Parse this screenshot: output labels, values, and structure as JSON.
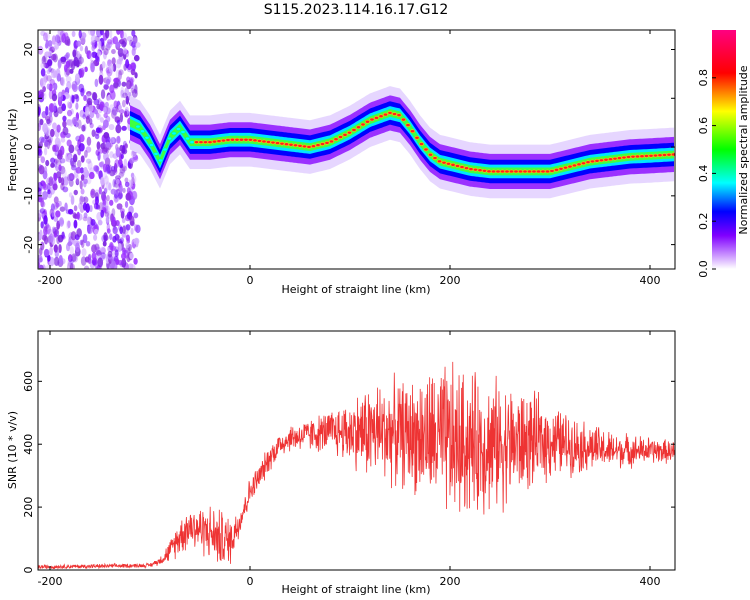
{
  "title": "S115.2023.114.16.17.G12",
  "chart_data": [
    {
      "type": "heatmap",
      "xlabel": "Height of straight line (km)",
      "ylabel": "Frequency (Hz)",
      "xlim": [
        -212,
        425
      ],
      "ylim": [
        -25,
        24
      ],
      "xticks": [
        -200,
        0,
        200,
        400
      ],
      "yticks": [
        20,
        10,
        0,
        -10,
        -20
      ],
      "ytick_labels": [
        "20",
        "10",
        "0",
        "-10",
        "-20"
      ],
      "colorbar": {
        "label": "Normalized spectral amplitude",
        "range": [
          0,
          1
        ],
        "ticks": [
          0.0,
          0.2,
          0.4,
          0.6,
          0.8
        ],
        "tick_labels": [
          "0.0",
          "0.2",
          "0.4",
          "0.6",
          "0.8"
        ],
        "colors": [
          "#ffffff",
          "#8000ff",
          "#0000ff",
          "#00ffff",
          "#00ff00",
          "#ffff00",
          "#ff0000",
          "#ff0080"
        ]
      },
      "noise_region_x": [
        -212,
        -112
      ],
      "ridge": {
        "x": [
          -120,
          -110,
          -100,
          -90,
          -80,
          -70,
          -60,
          -50,
          -40,
          -20,
          0,
          20,
          40,
          60,
          80,
          100,
          120,
          140,
          150,
          160,
          170,
          180,
          190,
          200,
          220,
          240,
          260,
          280,
          300,
          320,
          340,
          360,
          380,
          400,
          425
        ],
        "y": [
          5,
          4,
          1,
          -3,
          2,
          4,
          1,
          1,
          1,
          1.5,
          1.5,
          1,
          0.5,
          0,
          1,
          3,
          5.5,
          7,
          6.5,
          4,
          1,
          -1.5,
          -3,
          -3.5,
          -4.5,
          -5,
          -5,
          -5,
          -5,
          -4,
          -3,
          -2.5,
          -2,
          -1.8,
          -1.5
        ]
      }
    },
    {
      "type": "line",
      "xlabel": "Height of straight line (km)",
      "ylabel": "SNR (10 * v/v)",
      "xlim": [
        -212,
        425
      ],
      "ylim": [
        0,
        760
      ],
      "xticks": [
        -200,
        0,
        200,
        400
      ],
      "yticks": [
        0,
        200,
        400,
        600
      ],
      "color": "#ee3333",
      "envelope": {
        "x": [
          -212,
          -150,
          -100,
          -90,
          -80,
          -70,
          -60,
          -50,
          -40,
          -30,
          -20,
          -10,
          0,
          10,
          20,
          30,
          40,
          60,
          80,
          100,
          120,
          140,
          160,
          180,
          200,
          220,
          240,
          260,
          280,
          300,
          320,
          340,
          360,
          380,
          400,
          425
        ],
        "mean": [
          10,
          12,
          15,
          30,
          60,
          110,
          140,
          130,
          120,
          100,
          90,
          160,
          250,
          300,
          360,
          400,
          420,
          430,
          440,
          440,
          440,
          440,
          430,
          420,
          400,
          400,
          400,
          400,
          410,
          410,
          400,
          390,
          380,
          380,
          380,
          375
        ],
        "spread": [
          8,
          8,
          8,
          15,
          40,
          70,
          80,
          90,
          100,
          110,
          90,
          60,
          50,
          50,
          50,
          50,
          50,
          60,
          80,
          120,
          180,
          190,
          200,
          250,
          300,
          260,
          250,
          220,
          180,
          140,
          110,
          90,
          70,
          60,
          50,
          40
        ]
      }
    }
  ]
}
